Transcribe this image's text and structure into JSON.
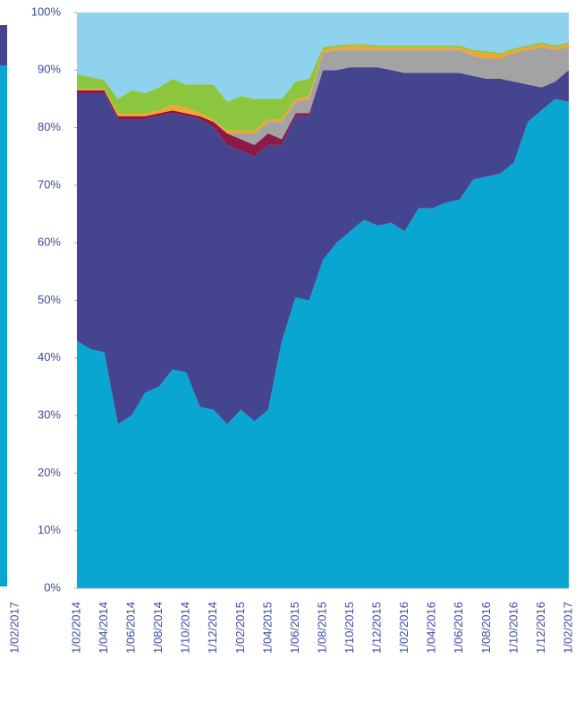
{
  "left_fragment": {
    "label": "1/02/2017"
  },
  "chart_data": {
    "type": "stacked_area",
    "categories": [
      "1/02/2014",
      null,
      "1/04/2014",
      null,
      "1/06/2014",
      null,
      "1/08/2014",
      null,
      "1/10/2014",
      null,
      "1/12/2014",
      null,
      "1/02/2015",
      null,
      "1/04/2015",
      null,
      "1/06/2015",
      null,
      "1/08/2015",
      null,
      "1/10/2015",
      null,
      "1/12/2015",
      null,
      "1/02/2016",
      null,
      "1/04/2016",
      null,
      "1/06/2016",
      null,
      "1/08/2016",
      null,
      "1/10/2016",
      null,
      "1/12/2016",
      null,
      "1/02/2017"
    ],
    "series": [
      {
        "color": "#0aa6d2",
        "values": [
          43,
          41.5,
          41,
          28.5,
          30,
          34,
          35,
          38,
          37.5,
          31.5,
          31,
          28.5,
          31,
          29,
          31,
          43,
          50.5,
          50,
          57,
          60,
          62,
          64,
          63,
          63.5,
          62,
          66,
          66,
          67,
          67.5,
          71,
          71.5,
          72,
          74,
          81,
          83,
          85,
          84.5
        ]
      },
      {
        "color": "#45458f",
        "values": [
          43,
          44.5,
          45,
          53,
          51.5,
          47.5,
          47,
          44.5,
          44.5,
          50,
          49,
          48.5,
          45,
          46,
          46,
          34,
          31.5,
          32,
          33,
          30,
          28.5,
          26.5,
          27.5,
          26.5,
          27.5,
          23.5,
          23.5,
          22.5,
          22,
          18,
          17,
          16.5,
          14,
          6.5,
          4,
          3,
          5.5
        ]
      },
      {
        "color": "#8b1a4a",
        "values": [
          0.5,
          0.5,
          0.5,
          0.5,
          0.5,
          0.5,
          0.5,
          0.5,
          0.5,
          0.5,
          1,
          2,
          2,
          2,
          2,
          1,
          0.5,
          0.5,
          0,
          0,
          0,
          0,
          0,
          0,
          0,
          0,
          0,
          0,
          0,
          0,
          0,
          0,
          0,
          0,
          0,
          0,
          0
        ]
      },
      {
        "color": "#a3a3a3",
        "values": [
          0,
          0,
          0,
          0,
          0,
          0,
          0,
          0,
          0,
          0,
          0,
          0,
          1,
          2,
          2,
          3,
          2,
          2.5,
          3,
          3.5,
          3,
          3,
          3,
          3.5,
          4,
          4,
          4,
          4,
          4,
          3.5,
          3.5,
          3.5,
          5,
          6,
          7,
          5.5,
          4
        ]
      },
      {
        "color": "#f2a531",
        "values": [
          0.3,
          0.3,
          0.3,
          0.5,
          0.5,
          0.5,
          0.5,
          1,
          1,
          0.5,
          0.5,
          0.5,
          0.5,
          0.5,
          0.5,
          0.5,
          0.5,
          0.5,
          0.5,
          0.5,
          0.7,
          0.7,
          0.5,
          0.5,
          0.5,
          0.5,
          0.5,
          0.5,
          0.5,
          0.7,
          1,
          0.7,
          0.5,
          0.5,
          0.5,
          0.5,
          0.5
        ]
      },
      {
        "color": "#8cc63e",
        "values": [
          2.5,
          2,
          1.5,
          2.5,
          4,
          3.5,
          4,
          4.5,
          4,
          5,
          6,
          5,
          6,
          5.5,
          3.5,
          3.5,
          3,
          3,
          0.5,
          0.3,
          0.3,
          0.3,
          0.3,
          0.3,
          0.3,
          0.3,
          0.3,
          0.3,
          0.3,
          0.3,
          0.3,
          0.3,
          0.3,
          0.3,
          0.3,
          0.3,
          0.3
        ]
      },
      {
        "color": "#8fd2ee",
        "values": [
          10.7,
          11.2,
          11.7,
          15,
          13.5,
          14,
          13,
          11.5,
          12.5,
          12.5,
          12.5,
          15.5,
          14.5,
          15,
          15,
          15,
          12,
          11.5,
          6,
          5.7,
          5.5,
          5.5,
          5.7,
          5.7,
          5.7,
          5.7,
          5.7,
          5.7,
          5.7,
          6.5,
          6.7,
          7,
          6.2,
          5.7,
          5.2,
          5.7,
          5.2
        ]
      }
    ],
    "ylim": [
      0,
      100
    ],
    "yticks": [
      {
        "value": 0,
        "label": "0%"
      },
      {
        "value": 10,
        "label": "10%"
      },
      {
        "value": 20,
        "label": "20%"
      },
      {
        "value": 30,
        "label": "30%"
      },
      {
        "value": 40,
        "label": "40%"
      },
      {
        "value": 50,
        "label": "50%"
      },
      {
        "value": 60,
        "label": "60%"
      },
      {
        "value": 70,
        "label": "70%"
      },
      {
        "value": 80,
        "label": "80%"
      },
      {
        "value": 90,
        "label": "90%"
      },
      {
        "value": 100,
        "label": "100%"
      }
    ]
  }
}
